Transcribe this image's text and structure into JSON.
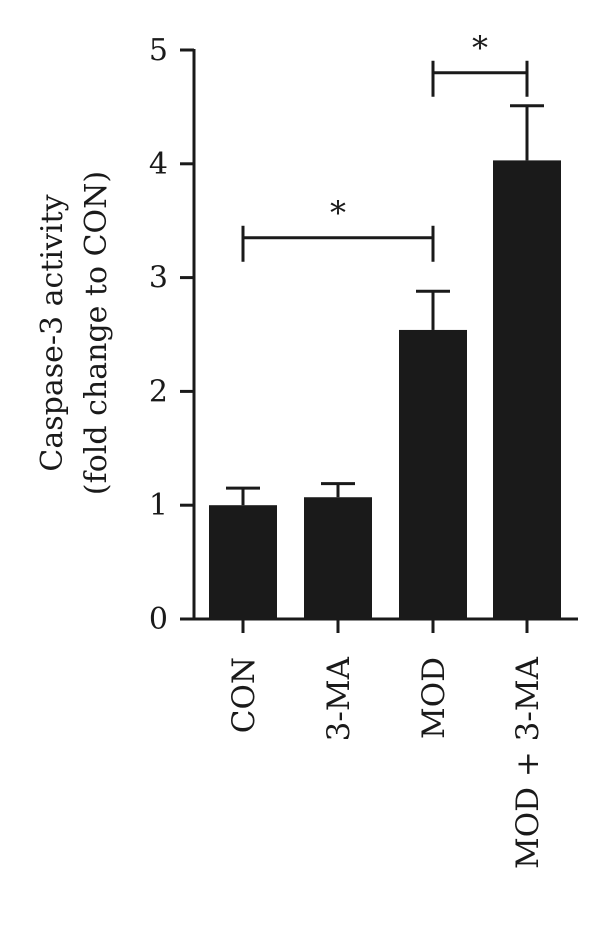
{
  "chart_data": {
    "type": "bar",
    "ylabel_lines": [
      "Caspase-3 activity",
      "(fold change to CON)"
    ],
    "categories": [
      "CON",
      "3-MA",
      "MOD",
      "MOD + 3-MA"
    ],
    "series": [
      {
        "values": [
          1.0,
          1.07,
          2.54,
          4.03
        ],
        "errors": [
          0.15,
          0.12,
          0.34,
          0.48
        ]
      }
    ],
    "ylim": [
      0,
      5
    ],
    "yticks": [
      "0",
      "1",
      "2",
      "3",
      "4",
      "5"
    ],
    "grid": false,
    "bar_color": "#1a1a1a",
    "significance": [
      {
        "from": 0,
        "to": 2,
        "y": 3.35,
        "label": "*"
      },
      {
        "from": 2,
        "to": 3,
        "y": 4.8,
        "label": "*"
      }
    ]
  }
}
